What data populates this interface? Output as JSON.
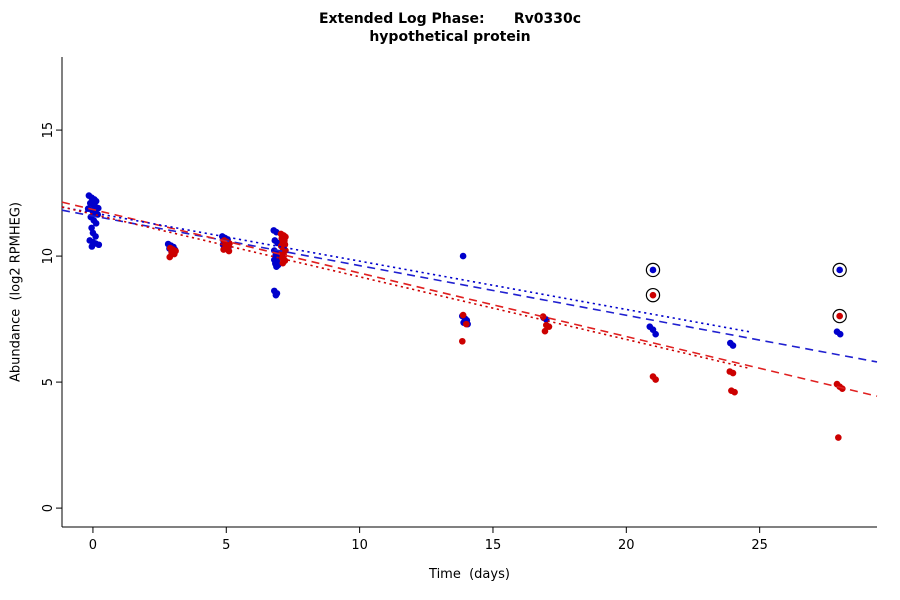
{
  "chart_data": {
    "type": "scatter",
    "title": "Extended Log Phase:      Rv0330c",
    "subtitle": "hypothetical protein",
    "xlabel": "Time  (days)",
    "ylabel": "Abundance  (log2 RPMHEG)",
    "xlim": [
      -1.16,
      29.4
    ],
    "ylim": [
      -0.75,
      17.9
    ],
    "xticks": [
      0,
      5,
      10,
      15,
      20,
      25
    ],
    "yticks": [
      0,
      5,
      10,
      15
    ],
    "grid": false,
    "legend": "none",
    "colors": {
      "blue": "#0000CC",
      "red": "#CC0000",
      "ring": "#000000",
      "axis": "#000000"
    },
    "series": [
      {
        "name": "blue",
        "color": "#0000CC",
        "points": [
          [
            -0.15,
            12.4
          ],
          [
            -0.05,
            12.32
          ],
          [
            0.05,
            12.25
          ],
          [
            0.12,
            12.18
          ],
          [
            -0.1,
            12.1
          ],
          [
            0.02,
            12.02
          ],
          [
            0.1,
            11.95
          ],
          [
            0.2,
            11.9
          ],
          [
            -0.18,
            11.88
          ],
          [
            -0.02,
            11.8
          ],
          [
            0.08,
            11.72
          ],
          [
            0.18,
            11.65
          ],
          [
            -0.08,
            11.55
          ],
          [
            0.03,
            11.42
          ],
          [
            0.12,
            11.3
          ],
          [
            -0.05,
            11.12
          ],
          [
            0.0,
            10.92
          ],
          [
            0.1,
            10.78
          ],
          [
            -0.12,
            10.62
          ],
          [
            0.0,
            10.55
          ],
          [
            0.1,
            10.5
          ],
          [
            0.22,
            10.45
          ],
          [
            -0.04,
            10.38
          ],
          [
            2.82,
            10.48
          ],
          [
            2.92,
            10.42
          ],
          [
            3.02,
            10.36
          ],
          [
            2.87,
            10.3
          ],
          [
            3.08,
            10.25
          ],
          [
            4.85,
            10.78
          ],
          [
            4.95,
            10.72
          ],
          [
            5.05,
            10.66
          ],
          [
            4.9,
            10.6
          ],
          [
            5.0,
            10.55
          ],
          [
            5.1,
            10.5
          ],
          [
            4.88,
            10.45
          ],
          [
            4.98,
            10.4
          ],
          [
            5.08,
            10.34
          ],
          [
            4.93,
            10.28
          ],
          [
            6.78,
            11.02
          ],
          [
            6.88,
            10.95
          ],
          [
            6.82,
            10.62
          ],
          [
            6.92,
            10.52
          ],
          [
            6.8,
            10.22
          ],
          [
            6.9,
            10.12
          ],
          [
            6.85,
            10.02
          ],
          [
            6.95,
            9.92
          ],
          [
            6.8,
            9.85
          ],
          [
            6.9,
            9.78
          ],
          [
            6.84,
            9.7
          ],
          [
            6.94,
            9.64
          ],
          [
            6.88,
            9.58
          ],
          [
            6.8,
            8.62
          ],
          [
            6.9,
            8.52
          ],
          [
            6.86,
            8.45
          ],
          [
            13.88,
            10.0
          ],
          [
            13.85,
            7.62
          ],
          [
            13.95,
            7.52
          ],
          [
            14.02,
            7.45
          ],
          [
            13.9,
            7.36
          ],
          [
            14.05,
            7.3
          ],
          [
            16.9,
            7.55
          ],
          [
            17.0,
            7.48
          ],
          [
            20.88,
            7.2
          ],
          [
            21.0,
            7.08
          ],
          [
            21.1,
            6.9
          ],
          [
            23.9,
            6.55
          ],
          [
            24.0,
            6.45
          ],
          [
            27.9,
            7.0
          ],
          [
            28.02,
            6.9
          ]
        ]
      },
      {
        "name": "red",
        "color": "#CC0000",
        "points": [
          [
            2.9,
            10.32
          ],
          [
            3.0,
            10.26
          ],
          [
            3.1,
            10.2
          ],
          [
            2.95,
            10.14
          ],
          [
            3.05,
            10.08
          ],
          [
            2.88,
            9.96
          ],
          [
            4.92,
            10.62
          ],
          [
            5.02,
            10.56
          ],
          [
            5.12,
            10.5
          ],
          [
            4.97,
            10.44
          ],
          [
            5.07,
            10.38
          ],
          [
            5.0,
            10.32
          ],
          [
            4.9,
            10.26
          ],
          [
            5.1,
            10.2
          ],
          [
            7.05,
            10.88
          ],
          [
            7.15,
            10.82
          ],
          [
            7.22,
            10.76
          ],
          [
            7.08,
            10.7
          ],
          [
            7.18,
            10.62
          ],
          [
            7.12,
            10.55
          ],
          [
            7.2,
            10.46
          ],
          [
            7.06,
            10.4
          ],
          [
            7.12,
            10.32
          ],
          [
            7.22,
            10.22
          ],
          [
            7.08,
            10.12
          ],
          [
            7.16,
            10.02
          ],
          [
            7.1,
            9.92
          ],
          [
            7.2,
            9.82
          ],
          [
            7.12,
            9.72
          ],
          [
            13.88,
            7.66
          ],
          [
            14.0,
            7.3
          ],
          [
            13.85,
            6.62
          ],
          [
            16.88,
            7.6
          ],
          [
            17.0,
            7.26
          ],
          [
            17.1,
            7.2
          ],
          [
            16.95,
            7.02
          ],
          [
            21.0,
            5.22
          ],
          [
            21.1,
            5.1
          ],
          [
            23.88,
            5.42
          ],
          [
            24.0,
            5.36
          ],
          [
            23.94,
            4.66
          ],
          [
            24.06,
            4.6
          ],
          [
            27.9,
            4.92
          ],
          [
            28.0,
            4.82
          ],
          [
            28.1,
            4.74
          ],
          [
            27.95,
            2.8
          ]
        ]
      }
    ],
    "circled_points": [
      {
        "x": 21.0,
        "y": 9.45,
        "color": "#0000CC"
      },
      {
        "x": 21.0,
        "y": 8.45,
        "color": "#CC0000"
      },
      {
        "x": 28.0,
        "y": 9.45,
        "color": "#0000CC"
      },
      {
        "x": 28.0,
        "y": 7.62,
        "color": "#CC0000"
      }
    ],
    "lines": [
      {
        "name": "blue-dashed",
        "color": "#2020D0",
        "dash": "dashed",
        "x1": -1.16,
        "y1": 11.82,
        "x2": 29.4,
        "y2": 5.8
      },
      {
        "name": "red-dashed",
        "color": "#E02020",
        "dash": "dashed",
        "x1": -1.16,
        "y1": 12.14,
        "x2": 29.4,
        "y2": 4.44
      },
      {
        "name": "blue-dotted",
        "color": "#0000CC",
        "dash": "dotted",
        "x1": -1.16,
        "y1": 11.94,
        "x2": 24.6,
        "y2": 7.0
      },
      {
        "name": "red-dotted",
        "color": "#CC0000",
        "dash": "dotted",
        "x1": -1.16,
        "y1": 11.95,
        "x2": 24.6,
        "y2": 5.55
      }
    ]
  }
}
